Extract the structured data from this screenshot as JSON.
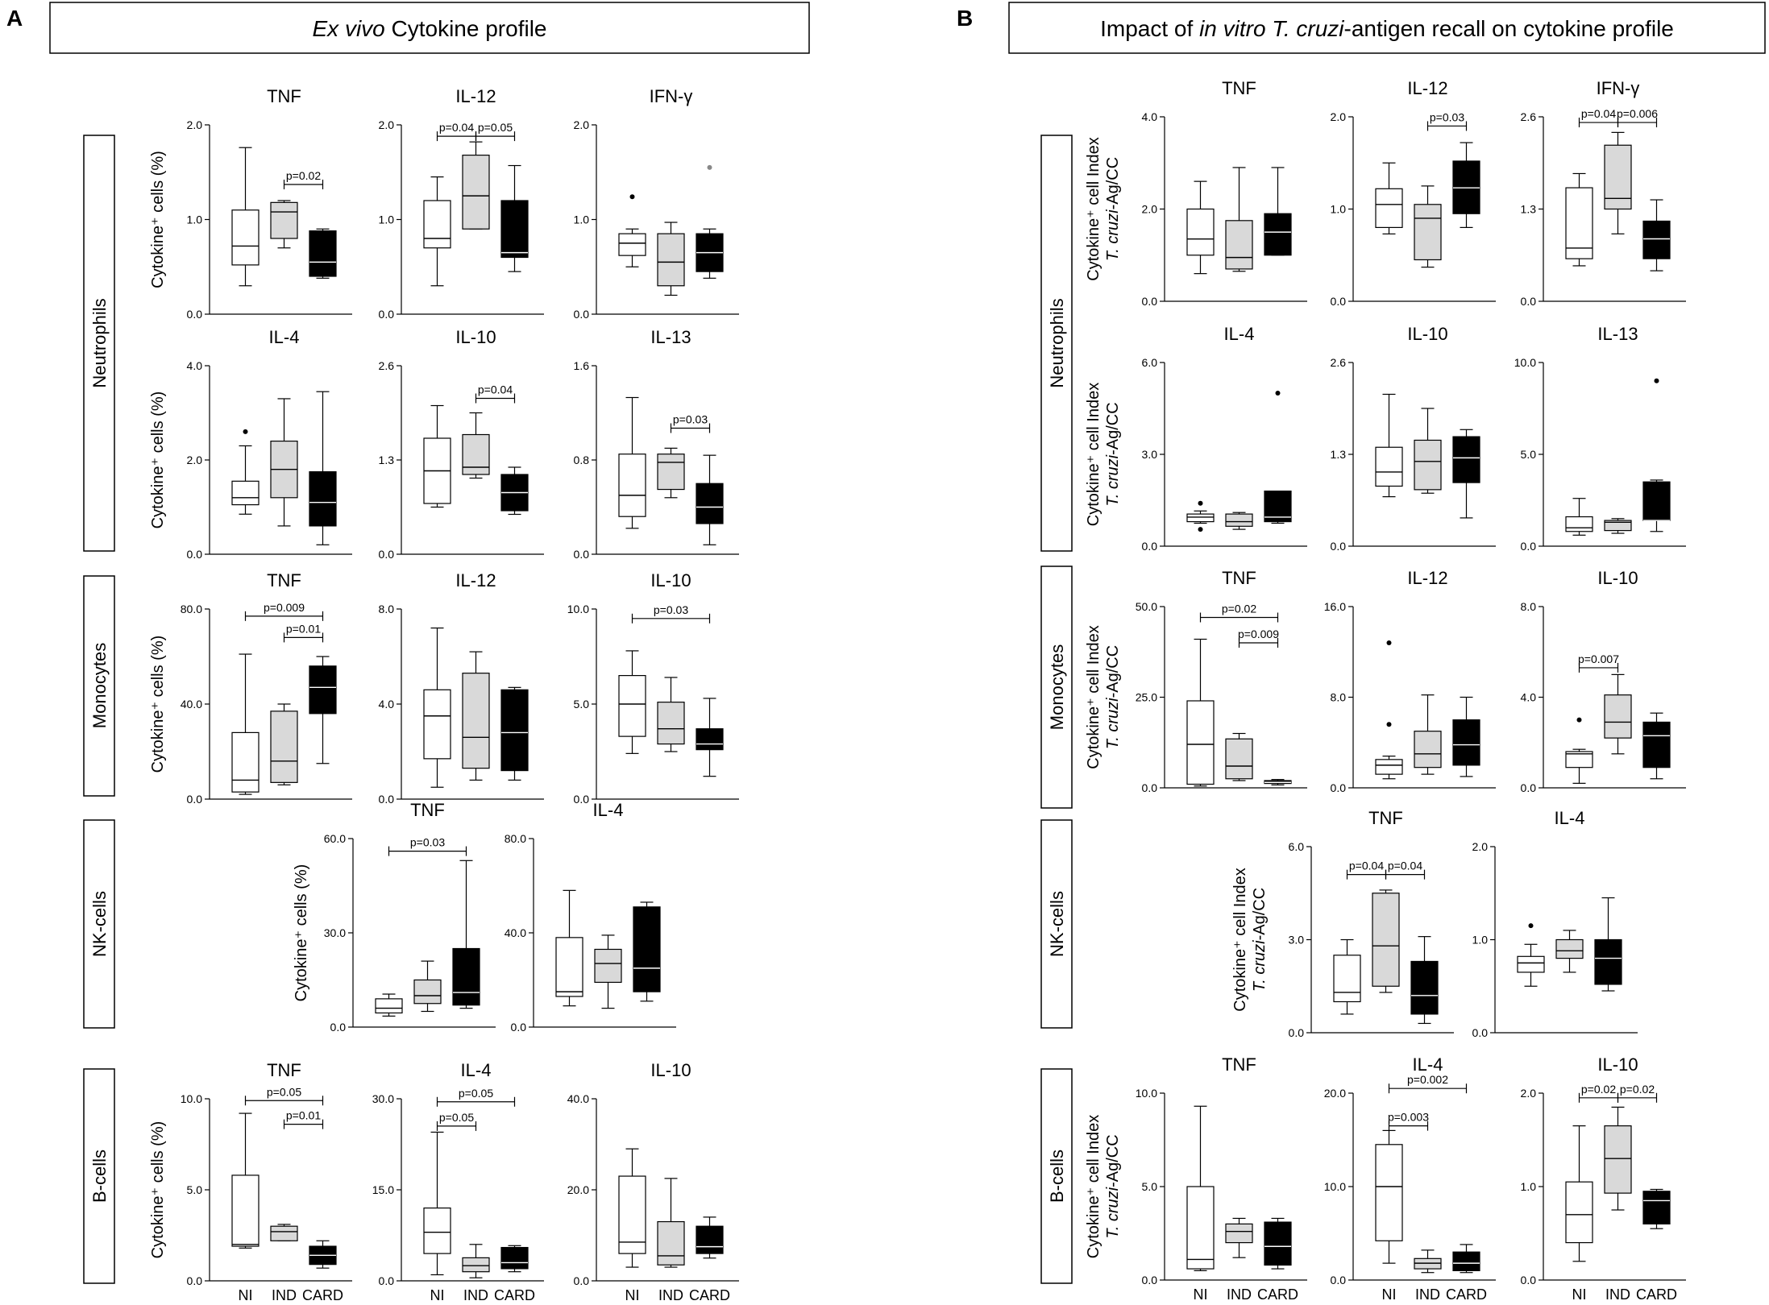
{
  "colors": {
    "ni": "#ffffff",
    "ind": "#d9d9d9",
    "card": "#000000",
    "line": "#000000",
    "gray": "#888888"
  },
  "panels": [
    {
      "letter": "A",
      "title": [
        "",
        "Ex vivo",
        " Cytokine profile"
      ]
    },
    {
      "letter": "B",
      "title": [
        "Impact of ",
        "in vitro T. cruzi",
        "-antigen recall on cytokine profile"
      ]
    }
  ],
  "cell_labels": [
    "Neutrophils",
    "Monocytes",
    "NK-cells",
    "B-cells",
    "Neutrophils",
    "Monocytes",
    "NK-cells",
    "B-cells"
  ],
  "ylabel_A": "Cytokine⁺ cells (%)",
  "ylabel_B1": "Cytokine⁺ cell Index",
  "ylabel_B2_italic": "T. cruzi",
  "ylabel_B2_rest": "-Ag/CC",
  "groups": [
    "NI",
    "IND",
    "CARD"
  ],
  "chart_data": [
    {
      "type": "box",
      "panel": "A",
      "cell": "Neutrophils",
      "title": "TNF",
      "ylim": [
        0,
        2.0
      ],
      "ticks": [
        "0.0",
        "1.0",
        "2.0"
      ],
      "boxes": [
        [
          0.3,
          0.52,
          0.72,
          1.1,
          1.76
        ],
        [
          0.7,
          0.8,
          1.08,
          1.18,
          1.2
        ],
        [
          0.38,
          0.4,
          0.55,
          0.88,
          0.9
        ]
      ],
      "sig": [
        {
          "label": "p=0.02",
          "a": 1,
          "b": 2,
          "y": 1.37
        }
      ]
    },
    {
      "type": "box",
      "panel": "A",
      "cell": "Neutrophils",
      "title": "IL-12",
      "ylim": [
        0,
        2.0
      ],
      "ticks": [
        "0.0",
        "1.0",
        "2.0"
      ],
      "boxes": [
        [
          0.3,
          0.7,
          0.8,
          1.2,
          1.45
        ],
        [
          0.9,
          0.9,
          1.25,
          1.68,
          1.82
        ],
        [
          0.45,
          0.6,
          0.65,
          1.2,
          1.57
        ]
      ],
      "sig": [
        {
          "label": "p=0.04",
          "a": 0,
          "b": 1,
          "y": 1.88
        },
        {
          "label": "p=0.05",
          "a": 1,
          "b": 2,
          "y": 1.88
        }
      ]
    },
    {
      "type": "box",
      "panel": "A",
      "cell": "Neutrophils",
      "title": "IFN-γ",
      "ylim": [
        0,
        2.0
      ],
      "ticks": [
        "0.0",
        "1.0",
        "2.0"
      ],
      "boxes": [
        [
          0.5,
          0.62,
          0.75,
          0.85,
          0.9
        ],
        [
          0.2,
          0.3,
          0.55,
          0.85,
          0.97
        ],
        [
          0.38,
          0.45,
          0.65,
          0.85,
          0.9
        ]
      ],
      "out": [
        [
          0,
          1.24
        ],
        [
          2,
          1.55
        ]
      ],
      "sig": []
    },
    {
      "type": "box",
      "panel": "A",
      "cell": "Neutrophils",
      "title": "IL-4",
      "ylim": [
        0,
        4.0
      ],
      "ticks": [
        "0.0",
        "2.0",
        "4.0"
      ],
      "boxes": [
        [
          0.85,
          1.05,
          1.2,
          1.55,
          2.3
        ],
        [
          0.6,
          1.2,
          1.8,
          2.4,
          3.3
        ],
        [
          0.2,
          0.6,
          1.1,
          1.75,
          3.45
        ]
      ],
      "out": [
        [
          0,
          2.6
        ]
      ],
      "sig": []
    },
    {
      "type": "box",
      "panel": "A",
      "cell": "Neutrophils",
      "title": "IL-10",
      "ylim": [
        0,
        2.6
      ],
      "ticks": [
        "0.0",
        "1.3",
        "2.6"
      ],
      "boxes": [
        [
          0.65,
          0.7,
          1.15,
          1.6,
          2.05
        ],
        [
          1.05,
          1.1,
          1.2,
          1.65,
          1.95
        ],
        [
          0.55,
          0.6,
          0.85,
          1.1,
          1.2
        ]
      ],
      "sig": [
        {
          "label": "p=0.04",
          "a": 1,
          "b": 2,
          "y": 2.15
        }
      ]
    },
    {
      "type": "box",
      "panel": "A",
      "cell": "Neutrophils",
      "title": "IL-13",
      "ylim": [
        0,
        1.6
      ],
      "ticks": [
        "0.0",
        "0.8",
        "1.6"
      ],
      "boxes": [
        [
          0.22,
          0.32,
          0.5,
          0.85,
          1.33
        ],
        [
          0.48,
          0.55,
          0.78,
          0.85,
          0.9
        ],
        [
          0.08,
          0.26,
          0.4,
          0.6,
          0.84
        ]
      ],
      "sig": [
        {
          "label": "p=0.03",
          "a": 1,
          "b": 2,
          "y": 1.07
        }
      ]
    },
    {
      "type": "box",
      "panel": "A",
      "cell": "Monocytes",
      "title": "TNF",
      "ylim": [
        0,
        80
      ],
      "ticks": [
        "0.0",
        "40.0",
        "80.0"
      ],
      "boxes": [
        [
          2,
          3,
          8,
          28,
          61
        ],
        [
          6,
          7,
          16,
          37,
          40
        ],
        [
          15,
          36,
          47,
          56,
          60
        ]
      ],
      "sig": [
        {
          "label": "p=0.009",
          "a": 0,
          "b": 2,
          "y": 77
        },
        {
          "label": "p=0.01",
          "a": 1,
          "b": 2,
          "y": 68
        }
      ]
    },
    {
      "type": "box",
      "panel": "A",
      "cell": "Monocytes",
      "title": "IL-12",
      "ylim": [
        0,
        8
      ],
      "ticks": [
        "0.0",
        "4.0",
        "8.0"
      ],
      "boxes": [
        [
          0.5,
          1.7,
          3.5,
          4.6,
          7.2
        ],
        [
          0.8,
          1.3,
          2.6,
          5.3,
          6.2
        ],
        [
          0.8,
          1.2,
          2.8,
          4.6,
          4.7
        ]
      ],
      "sig": []
    },
    {
      "type": "box",
      "panel": "A",
      "cell": "Monocytes",
      "title": "IL-10",
      "ylim": [
        0,
        10
      ],
      "ticks": [
        "0.0",
        "5.0",
        "10.0"
      ],
      "boxes": [
        [
          2.4,
          3.3,
          5.0,
          6.5,
          7.8
        ],
        [
          2.5,
          2.9,
          3.7,
          5.1,
          6.4
        ],
        [
          1.2,
          2.6,
          2.9,
          3.7,
          5.3
        ]
      ],
      "sig": [
        {
          "label": "p=0.03",
          "a": 0,
          "b": 2,
          "y": 9.5
        }
      ]
    },
    {
      "type": "box",
      "panel": "A",
      "cell": "NK-cells",
      "title": "TNF",
      "ylim": [
        0,
        60
      ],
      "ticks": [
        "0.0",
        "30.0",
        "60.0"
      ],
      "boxes": [
        [
          3.5,
          4.5,
          6,
          9,
          10.5
        ],
        [
          5,
          7.5,
          10,
          15,
          21
        ],
        [
          6,
          7,
          11,
          25,
          53
        ]
      ],
      "sig": [
        {
          "label": "p=0.03",
          "a": 0,
          "b": 2,
          "y": 56
        }
      ]
    },
    {
      "type": "box",
      "panel": "A",
      "cell": "NK-cells",
      "title": "IL-4",
      "ylim": [
        0,
        80
      ],
      "ticks": [
        "0.0",
        "40.0",
        "80.0"
      ],
      "boxes": [
        [
          9,
          13,
          15,
          38,
          58
        ],
        [
          8,
          19,
          27,
          33,
          39
        ],
        [
          11,
          15,
          25,
          51,
          53
        ]
      ],
      "sig": []
    },
    {
      "type": "box",
      "panel": "A",
      "cell": "B-cells",
      "title": "TNF",
      "ylim": [
        0,
        10
      ],
      "ticks": [
        "0.0",
        "5.0",
        "10.0"
      ],
      "boxes": [
        [
          1.8,
          1.9,
          2.0,
          5.8,
          9.2
        ],
        [
          2.2,
          2.2,
          2.7,
          3.0,
          3.1
        ],
        [
          0.7,
          0.9,
          1.4,
          1.9,
          2.2
        ]
      ],
      "sig": [
        {
          "label": "p=0.05",
          "a": 0,
          "b": 2,
          "y": 9.9
        },
        {
          "label": "p=0.01",
          "a": 1,
          "b": 2,
          "y": 8.6
        }
      ]
    },
    {
      "type": "box",
      "panel": "A",
      "cell": "B-cells",
      "title": "IL-4",
      "ylim": [
        0,
        30
      ],
      "ticks": [
        "0.0",
        "15.0",
        "30.0"
      ],
      "boxes": [
        [
          1,
          4.5,
          8,
          12,
          24.5
        ],
        [
          0.5,
          1.5,
          2.5,
          3.8,
          6
        ],
        [
          1.5,
          2,
          3,
          5.5,
          5.8
        ]
      ],
      "sig": [
        {
          "label": "p=0.05",
          "a": 0,
          "b": 2,
          "y": 29.5
        },
        {
          "label": "p=0.05",
          "a": 0,
          "b": 1,
          "y": 25.5
        }
      ]
    },
    {
      "type": "box",
      "panel": "A",
      "cell": "B-cells",
      "title": "IL-10",
      "ylim": [
        0,
        40
      ],
      "ticks": [
        "0.0",
        "20.0",
        "40.0"
      ],
      "boxes": [
        [
          3,
          6,
          8.5,
          23,
          29
        ],
        [
          3,
          3.5,
          5.5,
          13,
          22.5
        ],
        [
          5,
          6,
          7.5,
          12,
          14
        ]
      ],
      "sig": []
    },
    {
      "type": "box",
      "panel": "B",
      "cell": "Neutrophils",
      "title": "TNF",
      "ylim": [
        0,
        4.0
      ],
      "ticks": [
        "0.0",
        "2.0",
        "4.0"
      ],
      "boxes": [
        [
          0.6,
          1.0,
          1.35,
          2.0,
          2.6
        ],
        [
          0.65,
          0.7,
          0.95,
          1.75,
          2.9
        ],
        [
          1.0,
          1.0,
          1.5,
          1.9,
          2.9
        ]
      ],
      "sig": []
    },
    {
      "type": "box",
      "panel": "B",
      "cell": "Neutrophils",
      "title": "IL-12",
      "ylim": [
        0,
        2.0
      ],
      "ticks": [
        "0.0",
        "1.0",
        "2.0"
      ],
      "boxes": [
        [
          0.73,
          0.8,
          1.05,
          1.22,
          1.5
        ],
        [
          0.37,
          0.45,
          0.9,
          1.05,
          1.25
        ],
        [
          0.8,
          0.95,
          1.23,
          1.52,
          1.72
        ]
      ],
      "sig": [
        {
          "label": "p=0.03",
          "a": 1,
          "b": 2,
          "y": 1.9
        }
      ]
    },
    {
      "type": "box",
      "panel": "B",
      "cell": "Neutrophils",
      "title": "IFN-γ",
      "ylim": [
        0,
        2.6
      ],
      "ticks": [
        "0.0",
        "1.3",
        "2.6"
      ],
      "boxes": [
        [
          0.5,
          0.6,
          0.75,
          1.6,
          1.8
        ],
        [
          0.95,
          1.3,
          1.45,
          2.2,
          2.38
        ],
        [
          0.43,
          0.6,
          0.88,
          1.13,
          1.43
        ]
      ],
      "sig": [
        {
          "label": "p=0.04",
          "a": 0,
          "b": 1,
          "y": 2.52
        },
        {
          "label": "p=0.006",
          "a": 1,
          "b": 2,
          "y": 2.52
        }
      ]
    },
    {
      "type": "box",
      "panel": "B",
      "cell": "Neutrophils",
      "title": "IL-4",
      "ylim": [
        0,
        6.0
      ],
      "ticks": [
        "0.0",
        "3.0",
        "6.0"
      ],
      "boxes": [
        [
          0.75,
          0.8,
          0.95,
          1.05,
          1.15
        ],
        [
          0.55,
          0.65,
          0.8,
          1.05,
          1.1
        ],
        [
          0.75,
          0.8,
          0.95,
          1.8,
          1.8
        ]
      ],
      "out": [
        [
          0,
          1.4
        ],
        [
          0,
          0.55
        ],
        [
          2,
          5.0
        ]
      ],
      "sig": []
    },
    {
      "type": "box",
      "panel": "B",
      "cell": "Neutrophils",
      "title": "IL-10",
      "ylim": [
        0,
        2.6
      ],
      "ticks": [
        "0.0",
        "1.3",
        "2.6"
      ],
      "boxes": [
        [
          0.7,
          0.85,
          1.05,
          1.4,
          2.15
        ],
        [
          0.75,
          0.8,
          1.2,
          1.5,
          1.95
        ],
        [
          0.4,
          0.9,
          1.25,
          1.55,
          1.65
        ]
      ],
      "sig": []
    },
    {
      "type": "box",
      "panel": "B",
      "cell": "Neutrophils",
      "title": "IL-13",
      "ylim": [
        0,
        10.0
      ],
      "ticks": [
        "0.0",
        "5.0",
        "10.0"
      ],
      "boxes": [
        [
          0.6,
          0.8,
          1.0,
          1.6,
          2.6
        ],
        [
          0.7,
          0.85,
          1.3,
          1.4,
          1.5
        ],
        [
          0.8,
          1.4,
          1.4,
          3.5,
          3.6
        ]
      ],
      "out": [
        [
          2,
          9.0
        ]
      ],
      "sig": []
    },
    {
      "type": "box",
      "panel": "B",
      "cell": "Monocytes",
      "title": "TNF",
      "ylim": [
        0,
        50
      ],
      "ticks": [
        "0.0",
        "25.0",
        "50.0"
      ],
      "boxes": [
        [
          0.5,
          1,
          12,
          24,
          41
        ],
        [
          2,
          2.5,
          6,
          13.5,
          15
        ],
        [
          0.8,
          1.2,
          1.5,
          2,
          2.3
        ]
      ],
      "sig": [
        {
          "label": "p=0.02",
          "a": 0,
          "b": 2,
          "y": 47
        },
        {
          "label": "p=0.009",
          "a": 1,
          "b": 2,
          "y": 40
        }
      ]
    },
    {
      "type": "box",
      "panel": "B",
      "cell": "Monocytes",
      "title": "IL-12",
      "ylim": [
        0,
        16
      ],
      "ticks": [
        "0.0",
        "8.0",
        "16.0"
      ],
      "boxes": [
        [
          0.8,
          1.2,
          2.0,
          2.5,
          2.8
        ],
        [
          1.2,
          1.8,
          3,
          5,
          8.2
        ],
        [
          1,
          2,
          3.8,
          6,
          8
        ]
      ],
      "out": [
        [
          0,
          12.8
        ],
        [
          0,
          5.6
        ]
      ],
      "sig": []
    },
    {
      "type": "box",
      "panel": "B",
      "cell": "Monocytes",
      "title": "IL-10",
      "ylim": [
        0,
        8.0
      ],
      "ticks": [
        "0.0",
        "4.0",
        "8.0"
      ],
      "boxes": [
        [
          0.2,
          0.9,
          1.5,
          1.6,
          1.7
        ],
        [
          1.5,
          2.2,
          2.9,
          4.1,
          5.0
        ],
        [
          0.4,
          0.9,
          2.3,
          2.9,
          3.3
        ]
      ],
      "out": [
        [
          0,
          3.0
        ]
      ],
      "sig": [
        {
          "label": "p=0.007",
          "a": 0,
          "b": 1,
          "y": 5.3
        }
      ]
    },
    {
      "type": "box",
      "panel": "B",
      "cell": "NK-cells",
      "title": "TNF",
      "ylim": [
        0,
        6.0
      ],
      "ticks": [
        "0.0",
        "3.0",
        "6.0"
      ],
      "boxes": [
        [
          0.6,
          1.0,
          1.3,
          2.5,
          3.0
        ],
        [
          1.3,
          1.5,
          2.8,
          4.5,
          4.6
        ],
        [
          0.3,
          0.6,
          1.2,
          2.3,
          3.1
        ]
      ],
      "sig": [
        {
          "label": "p=0.04",
          "a": 0,
          "b": 1,
          "y": 5.1
        },
        {
          "label": "p=0.04",
          "a": 1,
          "b": 2,
          "y": 5.1
        }
      ]
    },
    {
      "type": "box",
      "panel": "B",
      "cell": "NK-cells",
      "title": "IL-4",
      "ylim": [
        0,
        2.0
      ],
      "ticks": [
        "0.0",
        "1.0",
        "2.0"
      ],
      "boxes": [
        [
          0.5,
          0.65,
          0.75,
          0.82,
          0.95
        ],
        [
          0.65,
          0.8,
          0.88,
          1.0,
          1.1
        ],
        [
          0.45,
          0.52,
          0.8,
          1.0,
          1.45
        ]
      ],
      "out": [
        [
          0,
          1.15
        ]
      ],
      "sig": []
    },
    {
      "type": "box",
      "panel": "B",
      "cell": "B-cells",
      "title": "TNF",
      "ylim": [
        0,
        10.0
      ],
      "ticks": [
        "0.0",
        "5.0",
        "10.0"
      ],
      "boxes": [
        [
          0.5,
          0.6,
          1.1,
          5.0,
          9.3
        ],
        [
          1.2,
          2.0,
          2.6,
          3.0,
          3.3
        ],
        [
          0.6,
          0.8,
          1.8,
          3.1,
          3.3
        ]
      ],
      "sig": []
    },
    {
      "type": "box",
      "panel": "B",
      "cell": "B-cells",
      "title": "IL-4",
      "ylim": [
        0,
        20.0
      ],
      "ticks": [
        "0.0",
        "10.0",
        "20.0"
      ],
      "boxes": [
        [
          1.8,
          4.2,
          10,
          14.5,
          16
        ],
        [
          0.8,
          1.2,
          1.8,
          2.3,
          3.2
        ],
        [
          0.8,
          1.0,
          1.8,
          3.0,
          3.8
        ]
      ],
      "sig": [
        {
          "label": "p=0.002",
          "a": 0,
          "b": 2,
          "y": 20.5
        },
        {
          "label": "p=0.003",
          "a": 0,
          "b": 1,
          "y": 16.5
        }
      ]
    },
    {
      "type": "box",
      "panel": "B",
      "cell": "B-cells",
      "title": "IL-10",
      "ylim": [
        0,
        2.0
      ],
      "ticks": [
        "0.0",
        "1.0",
        "2.0"
      ],
      "boxes": [
        [
          0.2,
          0.4,
          0.7,
          1.05,
          1.65
        ],
        [
          0.75,
          0.93,
          1.3,
          1.65,
          1.85
        ],
        [
          0.55,
          0.6,
          0.85,
          0.95,
          0.97
        ]
      ],
      "sig": [
        {
          "label": "p=0.02",
          "a": 0,
          "b": 1,
          "y": 1.95
        },
        {
          "label": "p=0.02",
          "a": 1,
          "b": 2,
          "y": 1.95
        }
      ]
    }
  ]
}
